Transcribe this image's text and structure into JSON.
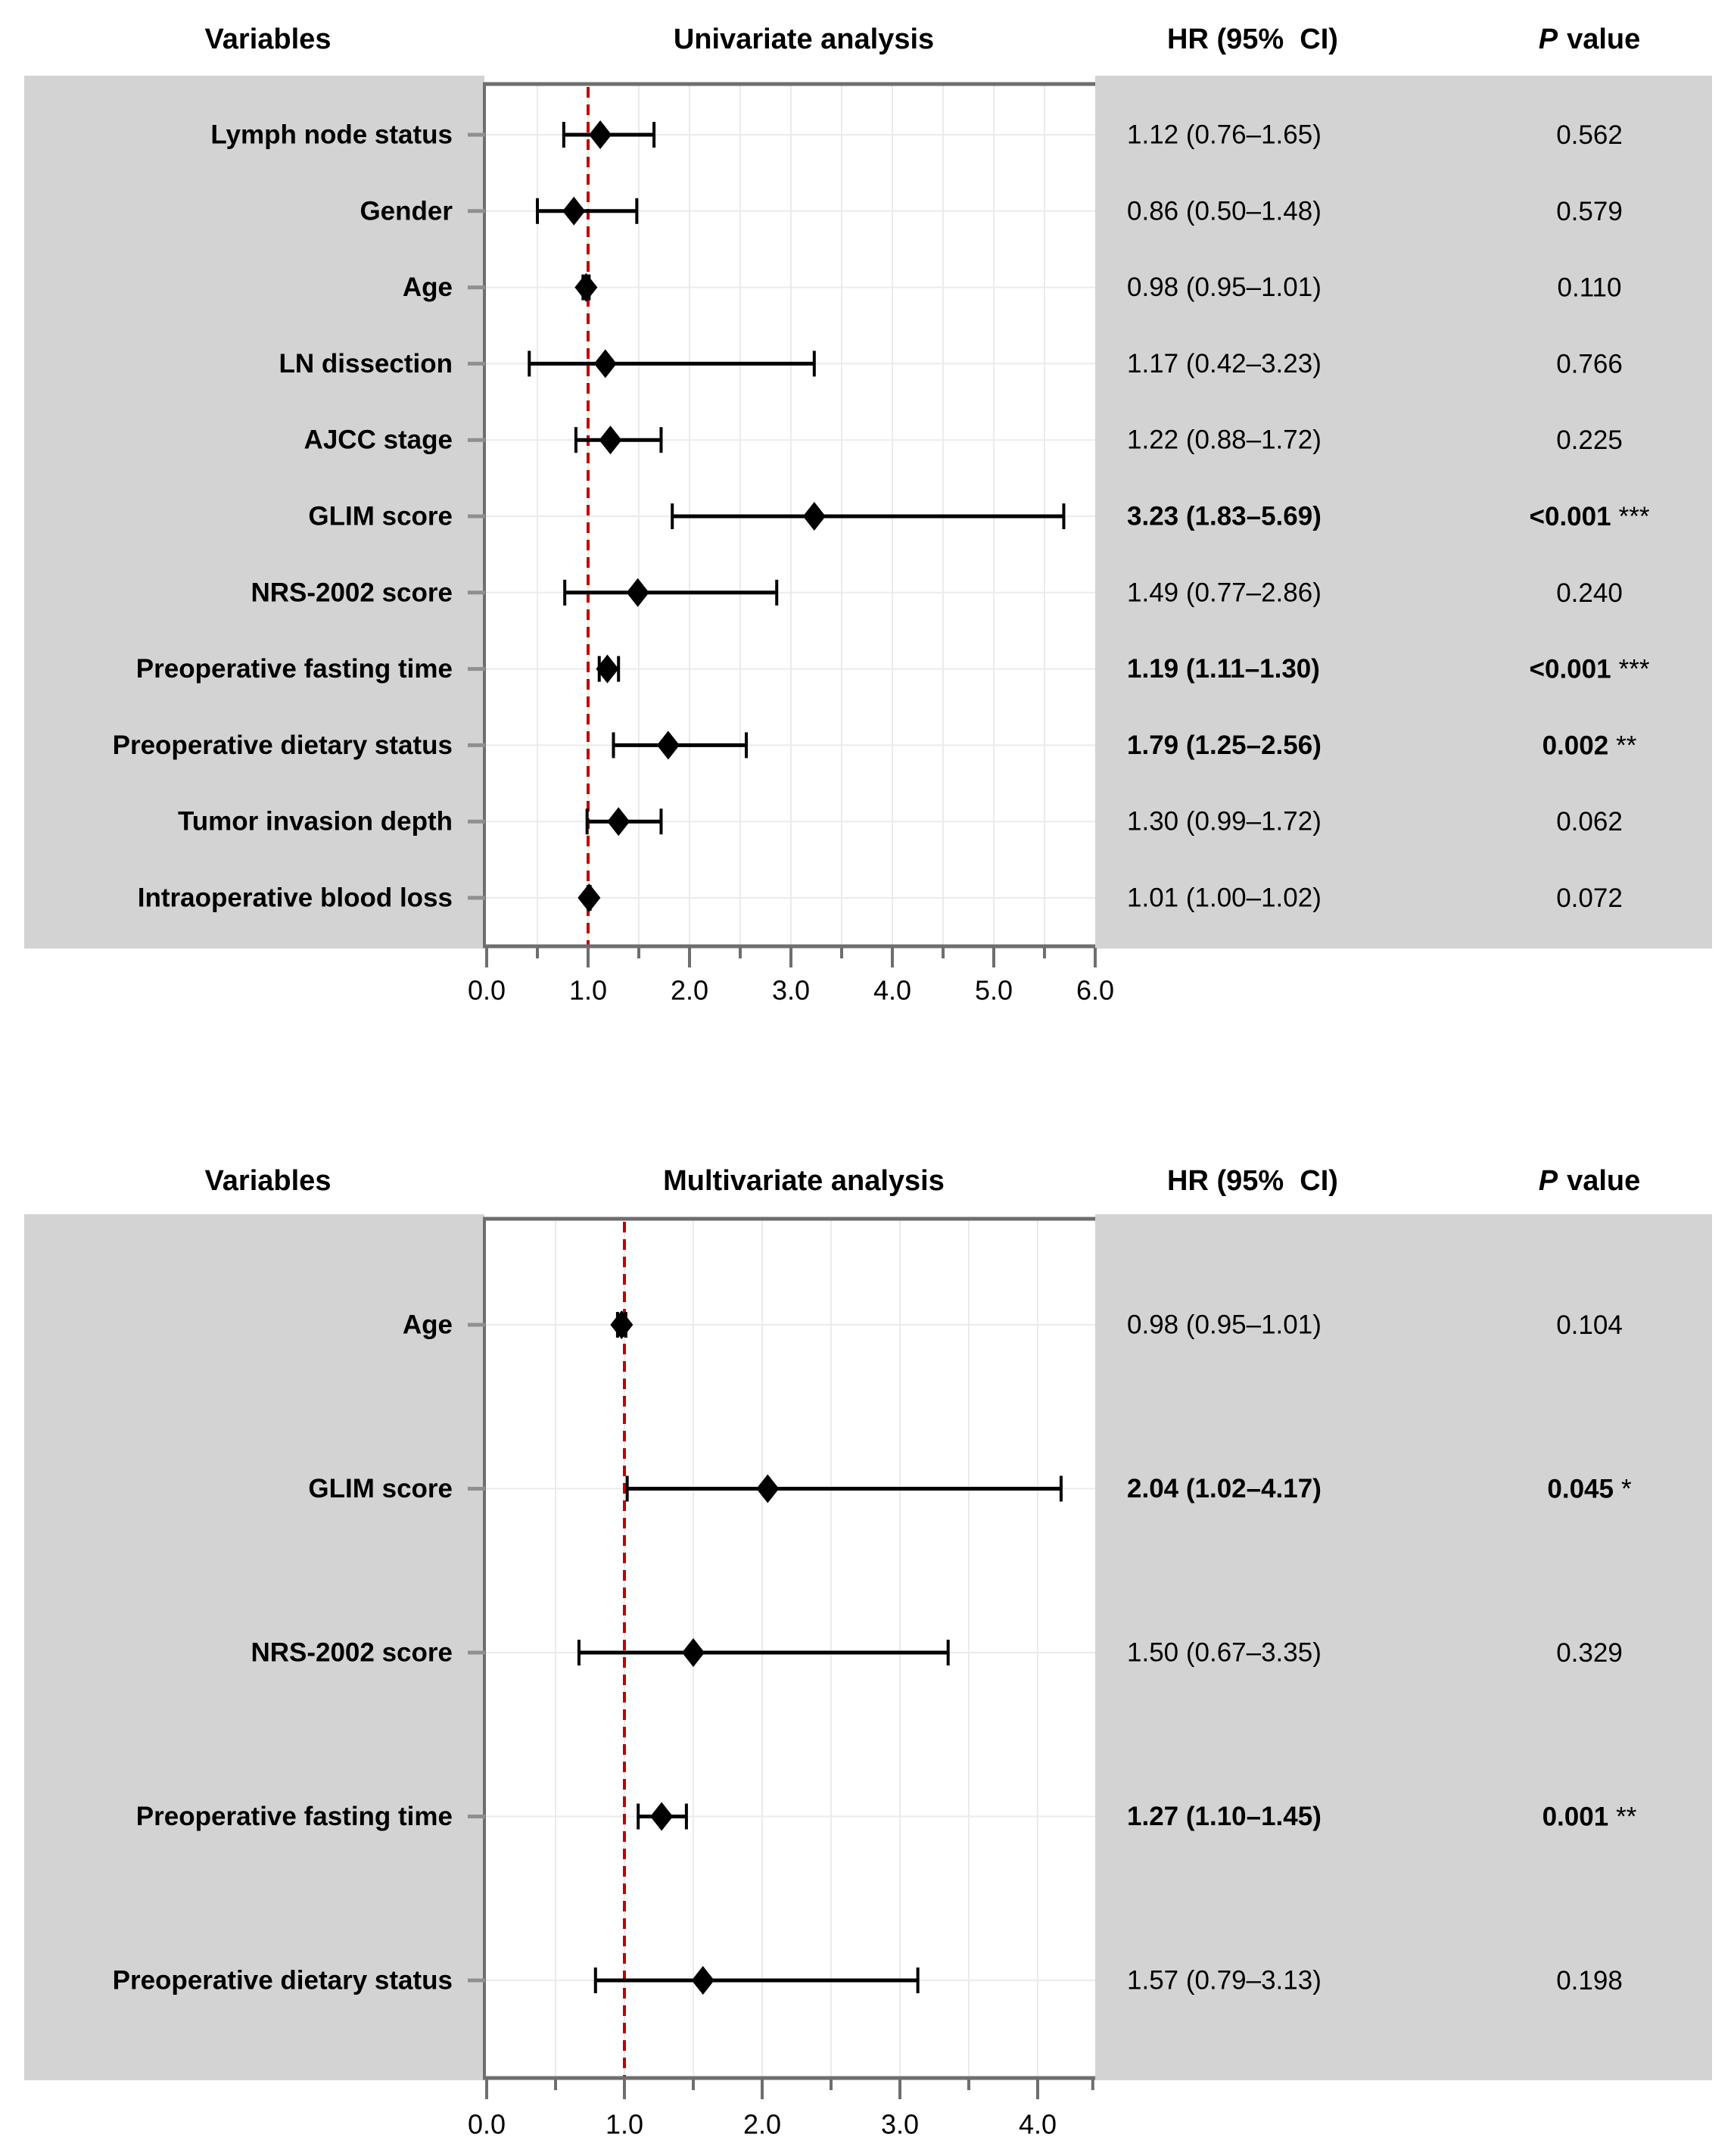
{
  "styles": {
    "band_color": "#d3d3d3",
    "plot_background": "#ffffff",
    "frame_color": "#6e6e6e",
    "grid_color": "#ebebeb",
    "row_tick_color": "#8f8f8f",
    "reference_line_color": "#c00000",
    "marker_color": "#000000",
    "text_color": "#000000"
  },
  "chart_data": [
    {
      "type": "forest",
      "title": "Univariate analysis",
      "columns": {
        "variables": "Variables",
        "hr": "HR (95%  CI)",
        "p_symbol": "P",
        "p_word": "value"
      },
      "x_axis": {
        "range": [
          0,
          6.0
        ],
        "ref_line": 1.0,
        "major_ticks": [
          0,
          1,
          2,
          3,
          4,
          5,
          6
        ],
        "tick_labels": [
          "0.0",
          "1.0",
          "2.0",
          "3.0",
          "4.0",
          "5.0",
          "6.0"
        ],
        "minor_ticks": [
          0.5,
          1.5,
          2.5,
          3.5,
          4.5,
          5.5
        ],
        "grid_step": 0.5,
        "grid": true,
        "legend": "none"
      },
      "rows": [
        {
          "label": "Lymph node status",
          "hr": 1.12,
          "lo": 0.76,
          "hi": 1.65,
          "hr_ci": "1.12 (0.76–1.65)",
          "p": "0.562",
          "stars": "",
          "significant": false
        },
        {
          "label": "Gender",
          "hr": 0.86,
          "lo": 0.5,
          "hi": 1.48,
          "hr_ci": "0.86 (0.50–1.48)",
          "p": "0.579",
          "stars": "",
          "significant": false
        },
        {
          "label": "Age",
          "hr": 0.98,
          "lo": 0.95,
          "hi": 1.01,
          "hr_ci": "0.98 (0.95–1.01)",
          "p": "0.110",
          "stars": "",
          "significant": false
        },
        {
          "label": "LN dissection",
          "hr": 1.17,
          "lo": 0.42,
          "hi": 3.23,
          "hr_ci": "1.17 (0.42–3.23)",
          "p": "0.766",
          "stars": "",
          "significant": false
        },
        {
          "label": "AJCC stage",
          "hr": 1.22,
          "lo": 0.88,
          "hi": 1.72,
          "hr_ci": "1.22 (0.88–1.72)",
          "p": "0.225",
          "stars": "",
          "significant": false
        },
        {
          "label": "GLIM score",
          "hr": 3.23,
          "lo": 1.83,
          "hi": 5.69,
          "hr_ci": "3.23 (1.83–5.69)",
          "p": "<0.001",
          "stars": "***",
          "significant": true
        },
        {
          "label": "NRS-2002 score",
          "hr": 1.49,
          "lo": 0.77,
          "hi": 2.86,
          "hr_ci": "1.49 (0.77–2.86)",
          "p": "0.240",
          "stars": "",
          "significant": false
        },
        {
          "label": "Preoperative fasting time",
          "hr": 1.19,
          "lo": 1.11,
          "hi": 1.3,
          "hr_ci": "1.19 (1.11–1.30)",
          "p": "<0.001",
          "stars": "***",
          "significant": true
        },
        {
          "label": "Preoperative dietary status",
          "hr": 1.79,
          "lo": 1.25,
          "hi": 2.56,
          "hr_ci": "1.79 (1.25–2.56)",
          "p": "0.002",
          "stars": "**",
          "significant": true
        },
        {
          "label": "Tumor invasion depth",
          "hr": 1.3,
          "lo": 0.99,
          "hi": 1.72,
          "hr_ci": "1.30 (0.99–1.72)",
          "p": "0.062",
          "stars": "",
          "significant": false
        },
        {
          "label": "Intraoperative blood loss",
          "hr": 1.01,
          "lo": 1.0,
          "hi": 1.02,
          "hr_ci": "1.01 (1.00–1.02)",
          "p": "0.072",
          "stars": "",
          "significant": false
        }
      ]
    },
    {
      "type": "forest",
      "title": "Multivariate analysis",
      "columns": {
        "variables": "Variables",
        "hr": "HR (95%  CI)",
        "p_symbol": "P",
        "p_word": "value"
      },
      "x_axis": {
        "range": [
          0,
          4.42
        ],
        "ref_line": 1.0,
        "major_ticks": [
          0,
          1,
          2,
          3,
          4
        ],
        "tick_labels": [
          "0.0",
          "1.0",
          "2.0",
          "3.0",
          "4.0"
        ],
        "minor_ticks": [
          0.5,
          1.5,
          2.5,
          3.5,
          4.4
        ],
        "grid_step": 0.5,
        "grid": true,
        "legend": "none"
      },
      "rows": [
        {
          "label": "Age",
          "hr": 0.98,
          "lo": 0.95,
          "hi": 1.01,
          "hr_ci": "0.98 (0.95–1.01)",
          "p": "0.104",
          "stars": "",
          "significant": false
        },
        {
          "label": "GLIM score",
          "hr": 2.04,
          "lo": 1.02,
          "hi": 4.17,
          "hr_ci": "2.04 (1.02–4.17)",
          "p": "0.045",
          "stars": "*",
          "significant": true
        },
        {
          "label": "NRS-2002 score",
          "hr": 1.5,
          "lo": 0.67,
          "hi": 3.35,
          "hr_ci": "1.50 (0.67–3.35)",
          "p": "0.329",
          "stars": "",
          "significant": false
        },
        {
          "label": "Preoperative fasting time",
          "hr": 1.27,
          "lo": 1.1,
          "hi": 1.45,
          "hr_ci": "1.27 (1.10–1.45)",
          "p": "0.001",
          "stars": "**",
          "significant": true
        },
        {
          "label": "Preoperative dietary status",
          "hr": 1.57,
          "lo": 0.79,
          "hi": 3.13,
          "hr_ci": "1.57 (0.79–3.13)",
          "p": "0.198",
          "stars": "",
          "significant": false
        }
      ]
    }
  ]
}
